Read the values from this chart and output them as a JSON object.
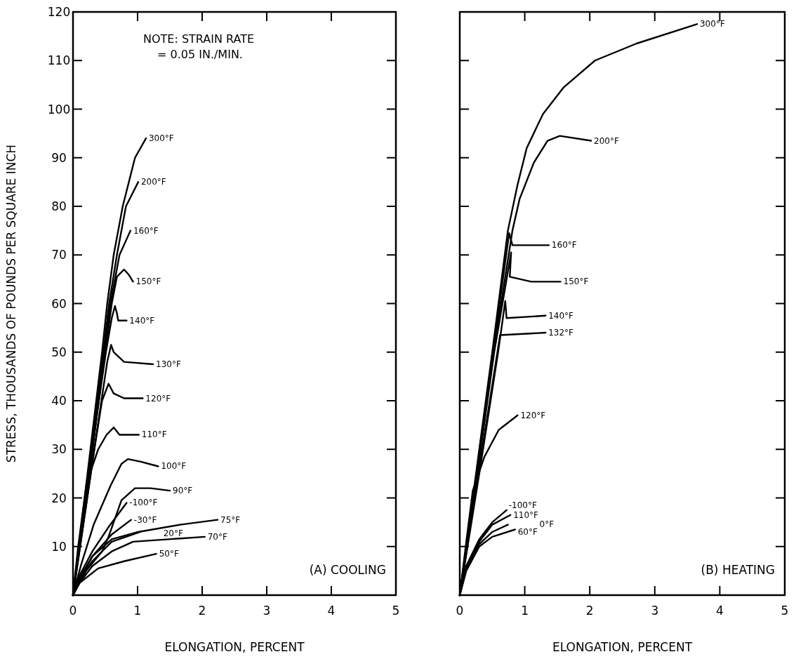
{
  "chart_data": [
    {
      "type": "line",
      "xlabel": "ELONGATION, PERCENT",
      "ylabel": "STRESS, THOUSANDS OF POUNDS PER SQUARE INCH",
      "xlim": [
        0,
        5
      ],
      "ylim": [
        0,
        120
      ],
      "xticks": [
        0,
        1,
        2,
        3,
        4,
        5
      ],
      "yticks": [
        {
          "value": 0,
          "label": null
        },
        10,
        20,
        30,
        40,
        50,
        60,
        70,
        80,
        90,
        100,
        110,
        120
      ],
      "line_style": "solid",
      "annotations": [
        "NOTE: STRAIN RATE",
        "= 0.05 IN./MIN.",
        "(A) COOLING"
      ],
      "series": [
        {
          "name": "300°F",
          "color": "#000000",
          "x": [
            0,
            0.09,
            0.18,
            0.27,
            0.36,
            0.45,
            0.53,
            0.63,
            0.77,
            0.96,
            1.13
          ],
          "values": [
            0,
            10,
            20,
            30,
            40,
            50,
            60,
            70,
            80,
            90,
            94
          ]
        },
        {
          "name": "200°F",
          "color": "#000000",
          "x": [
            0,
            0.09,
            0.19,
            0.28,
            0.38,
            0.47,
            0.56,
            0.68,
            0.82,
            1.01
          ],
          "values": [
            0,
            10,
            20,
            30,
            40,
            50,
            60,
            70,
            80,
            85
          ]
        },
        {
          "name": "160°F",
          "color": "#000000",
          "x": [
            0,
            0.1,
            0.2,
            0.3,
            0.39,
            0.48,
            0.58,
            0.72,
            0.89
          ],
          "values": [
            0,
            10,
            20,
            30,
            40,
            50,
            60,
            70,
            75
          ]
        },
        {
          "name": "150°F",
          "color": "#000000",
          "x": [
            0,
            0.1,
            0.2,
            0.3,
            0.4,
            0.5,
            0.6,
            0.68,
            0.79,
            0.86,
            0.93
          ],
          "values": [
            0,
            10,
            20,
            30,
            40,
            50,
            60,
            65.5,
            67,
            66,
            64.5
          ]
        },
        {
          "name": "140°F",
          "color": "#000000",
          "x": [
            0,
            0.1,
            0.2,
            0.3,
            0.4,
            0.51,
            0.6,
            0.65,
            0.68,
            0.7,
            0.83
          ],
          "values": [
            0,
            10,
            20,
            30,
            40,
            50,
            57,
            59.5,
            58,
            56.5,
            56.5
          ]
        },
        {
          "name": "130°F",
          "color": "#000000",
          "x": [
            0,
            0.11,
            0.22,
            0.33,
            0.44,
            0.53,
            0.59,
            0.63,
            0.79,
            1.24
          ],
          "values": [
            0,
            10,
            20,
            30,
            40,
            48,
            51.5,
            50,
            48,
            47.5
          ]
        },
        {
          "name": "120°F",
          "color": "#000000",
          "x": [
            0,
            0.11,
            0.22,
            0.33,
            0.45,
            0.55,
            0.63,
            0.79,
            1.08
          ],
          "values": [
            0,
            10,
            20,
            30,
            40,
            43.5,
            41.5,
            40.5,
            40.5
          ]
        },
        {
          "name": "110°F",
          "color": "#000000",
          "x": [
            0,
            0.08,
            0.21,
            0.39,
            0.52,
            0.63,
            0.72,
            1.02
          ],
          "values": [
            0,
            10,
            23,
            30,
            33,
            34.5,
            33,
            33
          ]
        },
        {
          "name": "100°F",
          "color": "#000000",
          "x": [
            0,
            0.12,
            0.32,
            0.58,
            0.75,
            0.85,
            1.04,
            1.32
          ],
          "values": [
            0,
            6,
            14.5,
            22.5,
            27,
            28,
            27.5,
            26.5
          ]
        },
        {
          "name": "90°F",
          "color": "#000000",
          "x": [
            0,
            0.2,
            0.45,
            0.55,
            0.75,
            0.96,
            1.2,
            1.5
          ],
          "values": [
            0,
            5,
            9,
            12,
            19.5,
            22,
            22,
            21.5
          ]
        },
        {
          "name": "-100°F",
          "color": "#000000",
          "x": [
            0,
            0.1,
            0.3,
            0.55,
            0.83
          ],
          "values": [
            0,
            4,
            9,
            14,
            19
          ]
        },
        {
          "name": "-30°F",
          "color": "#000000",
          "x": [
            0,
            0.1,
            0.3,
            0.6,
            0.9
          ],
          "values": [
            0,
            3.5,
            8,
            12.5,
            15.5
          ]
        },
        {
          "name": "20°F",
          "color": "#000000",
          "x": [
            0,
            0.1,
            0.3,
            0.6,
            1.04
          ],
          "values": [
            0,
            3,
            7,
            11,
            13
          ]
        },
        {
          "name": "75°F",
          "color": "#000000",
          "x": [
            0,
            0.1,
            0.3,
            0.6,
            1.01,
            1.66,
            2.24
          ],
          "values": [
            0,
            3,
            8,
            11.5,
            13,
            14.5,
            15.5
          ]
        },
        {
          "name": "70°F",
          "color": "#000000",
          "x": [
            0,
            0.1,
            0.3,
            0.6,
            0.93,
            1.48,
            2.04
          ],
          "values": [
            0,
            2.5,
            6,
            9,
            11,
            11.5,
            12
          ]
        },
        {
          "name": "50°F",
          "color": "#000000",
          "x": [
            0,
            0.1,
            0.39,
            0.8,
            1.29
          ],
          "values": [
            0,
            2.5,
            5.5,
            7,
            8.5
          ]
        }
      ]
    },
    {
      "type": "line",
      "xlabel": "ELONGATION, PERCENT",
      "xlim": [
        0,
        5
      ],
      "ylim": [
        0,
        120
      ],
      "xticks": [
        0,
        1,
        2,
        3,
        4,
        5
      ],
      "yticks": [
        {
          "value": 0,
          "label": null
        },
        10,
        20,
        30,
        40,
        50,
        60,
        70,
        80,
        90,
        100,
        110,
        120
      ],
      "tick_labels": "x",
      "line_style": "solid",
      "annotations": [
        "(B) HEATING"
      ],
      "series": [
        {
          "name": "300°F",
          "color": "#000000",
          "x": [
            0,
            0.25,
            0.5,
            0.74,
            0.89,
            1.03,
            1.28,
            1.6,
            2.08,
            2.72,
            3.65
          ],
          "values": [
            0,
            25,
            50,
            75,
            84.5,
            92,
            99,
            104.5,
            110,
            113.5,
            117.5
          ]
        },
        {
          "name": "200°F",
          "color": "#000000",
          "x": [
            0,
            0.26,
            0.52,
            0.81,
            0.92,
            1.14,
            1.35,
            1.54,
            2.02
          ],
          "values": [
            0,
            25,
            50,
            75,
            81.5,
            89,
            93.5,
            94.5,
            93.5
          ]
        },
        {
          "name": "160°F",
          "color": "#000000",
          "x": [
            0,
            0.26,
            0.51,
            0.76,
            0.81,
            1.37
          ],
          "values": [
            0,
            25,
            50,
            74.5,
            72,
            72
          ]
        },
        {
          "name": "150°F",
          "color": "#000000",
          "x": [
            0,
            0.27,
            0.53,
            0.79,
            0.77,
            1.1,
            1.55
          ],
          "values": [
            0,
            25,
            50,
            70.5,
            65.5,
            64.5,
            64.5
          ]
        },
        {
          "name": "140°F",
          "color": "#000000",
          "x": [
            0,
            0.3,
            0.59,
            0.7,
            0.72,
            1.32
          ],
          "values": [
            0,
            25,
            50,
            60.5,
            57,
            57.5
          ]
        },
        {
          "name": "132°F",
          "color": "#000000",
          "x": [
            0,
            0.31,
            0.62,
            1.32
          ],
          "values": [
            0,
            27,
            53.5,
            54
          ]
        },
        {
          "name": "120°F",
          "color": "#000000",
          "x": [
            0,
            0.1,
            0.2,
            0.38,
            0.6,
            0.89
          ],
          "values": [
            0,
            11,
            21.5,
            28.5,
            34,
            37
          ]
        },
        {
          "name": "-100°F",
          "color": "#000000",
          "x": [
            0,
            0.1,
            0.3,
            0.5,
            0.72
          ],
          "values": [
            0,
            6,
            11.5,
            15,
            17.5
          ]
        },
        {
          "name": "110°F",
          "color": "#000000",
          "x": [
            0,
            0.1,
            0.3,
            0.5,
            0.78
          ],
          "values": [
            0,
            6,
            11,
            14.5,
            16.5
          ]
        },
        {
          "name": "0°F",
          "color": "#000000",
          "x": [
            0,
            0.1,
            0.3,
            0.5,
            0.74
          ],
          "values": [
            0,
            5.5,
            10.5,
            13,
            14.5
          ]
        },
        {
          "name": "60°F",
          "color": "#000000",
          "x": [
            0,
            0.1,
            0.3,
            0.5,
            0.85
          ],
          "values": [
            0,
            5,
            10,
            12,
            13.5
          ]
        }
      ]
    }
  ]
}
